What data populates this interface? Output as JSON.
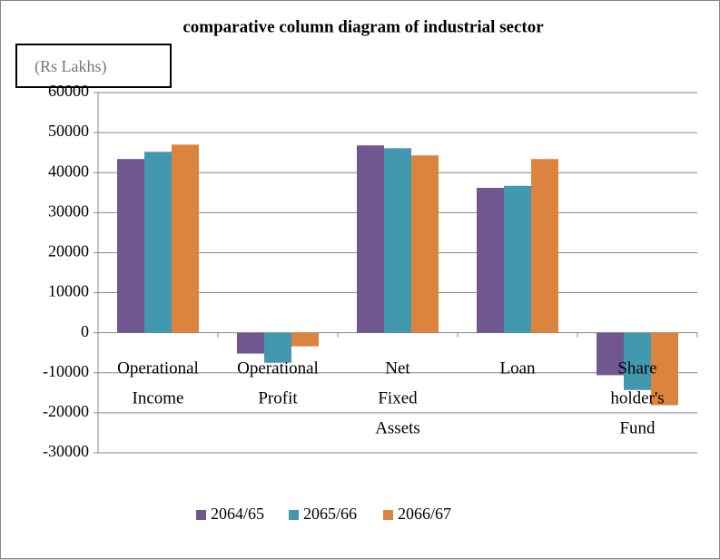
{
  "chart_data": {
    "type": "bar",
    "title": "comparative column diagram of industrial sector",
    "unit_label": "(Rs Lakhs)",
    "categories": [
      "Operational Income",
      "Operational Profit",
      "Net Fixed Assets",
      "Loan",
      "Share holder's Fund"
    ],
    "series": [
      {
        "name": "2064/65",
        "color": "#71578f",
        "values": [
          43400,
          -5200,
          46800,
          36200,
          -10600
        ]
      },
      {
        "name": "2065/66",
        "color": "#4198af",
        "values": [
          45200,
          -7500,
          46100,
          36700,
          -14300
        ]
      },
      {
        "name": "2066/67",
        "color": "#db843d",
        "values": [
          47000,
          -3400,
          44300,
          43400,
          -18100
        ]
      }
    ],
    "ylim": [
      -30000,
      60000
    ],
    "yticks": [
      -30000,
      -20000,
      -10000,
      0,
      10000,
      20000,
      30000,
      40000,
      50000,
      60000
    ],
    "grid": true,
    "legend": "bottom"
  }
}
